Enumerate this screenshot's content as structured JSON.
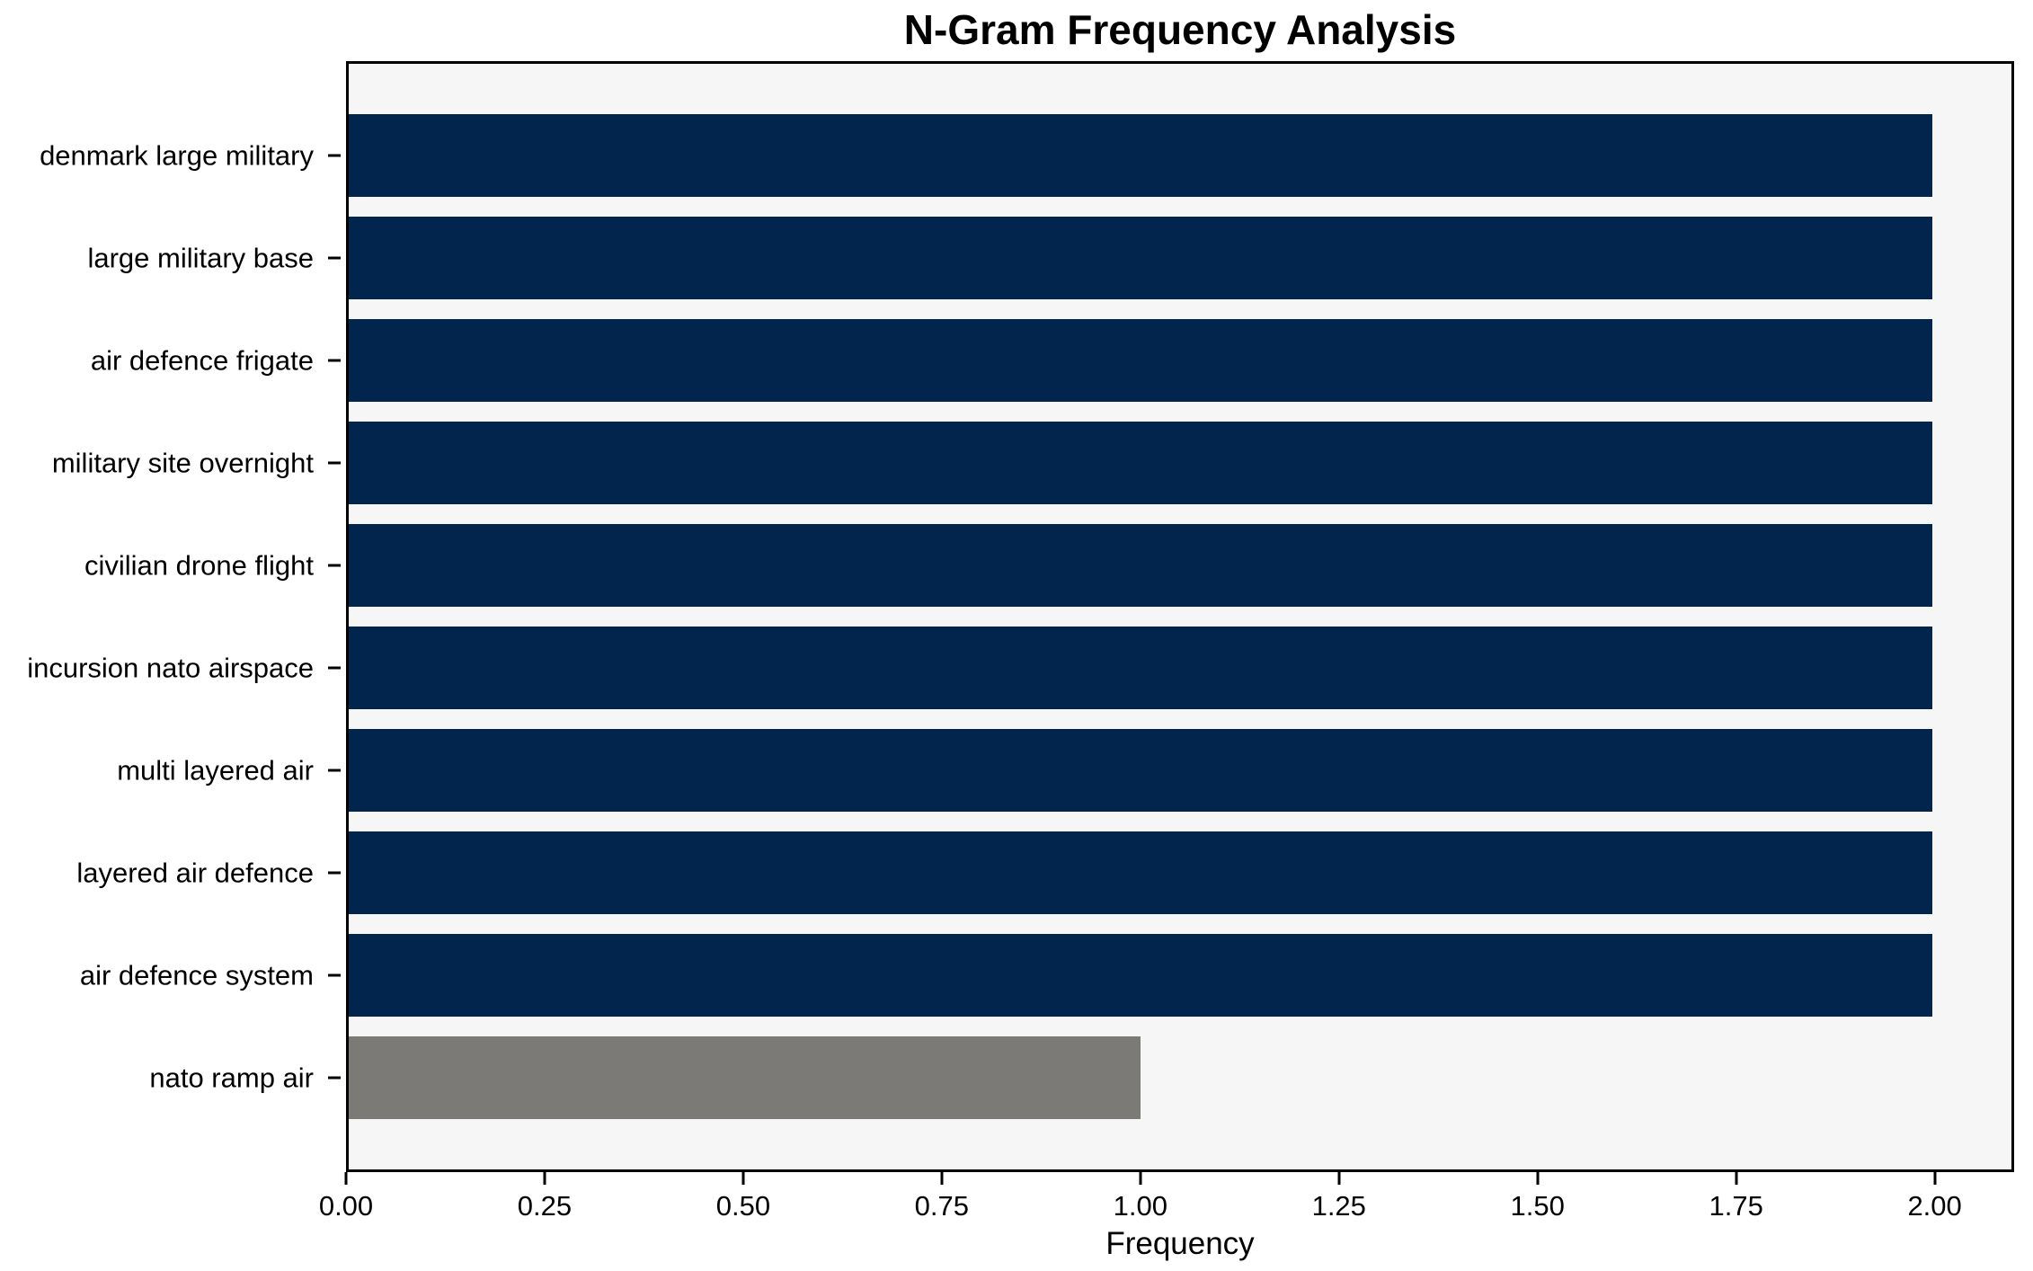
{
  "chart_data": {
    "type": "bar",
    "orientation": "horizontal",
    "title": "N-Gram Frequency Analysis",
    "xlabel": "Frequency",
    "ylabel": "",
    "categories": [
      "denmark large military",
      "large military base",
      "air defence frigate",
      "military site overnight",
      "civilian drone flight",
      "incursion nato airspace",
      "multi layered air",
      "layered air defence",
      "air defence system",
      "nato ramp air"
    ],
    "values": [
      2,
      2,
      2,
      2,
      2,
      2,
      2,
      2,
      2,
      1
    ],
    "bar_colors": [
      "#02254e",
      "#02254e",
      "#02254e",
      "#02254e",
      "#02254e",
      "#02254e",
      "#02254e",
      "#02254e",
      "#02254e",
      "#7b7a76"
    ],
    "xlim": [
      0,
      2.1
    ],
    "x_ticks": [
      0,
      0.25,
      0.5,
      0.75,
      1.0,
      1.25,
      1.5,
      1.75,
      2.0
    ],
    "x_tick_labels": [
      "0.00",
      "0.25",
      "0.50",
      "0.75",
      "1.00",
      "1.25",
      "1.50",
      "1.75",
      "2.00"
    ],
    "grid": false,
    "legend": false,
    "plot_background": "#f6f6f6",
    "figure_background": "#ffffff",
    "spine_color": "#000000"
  }
}
